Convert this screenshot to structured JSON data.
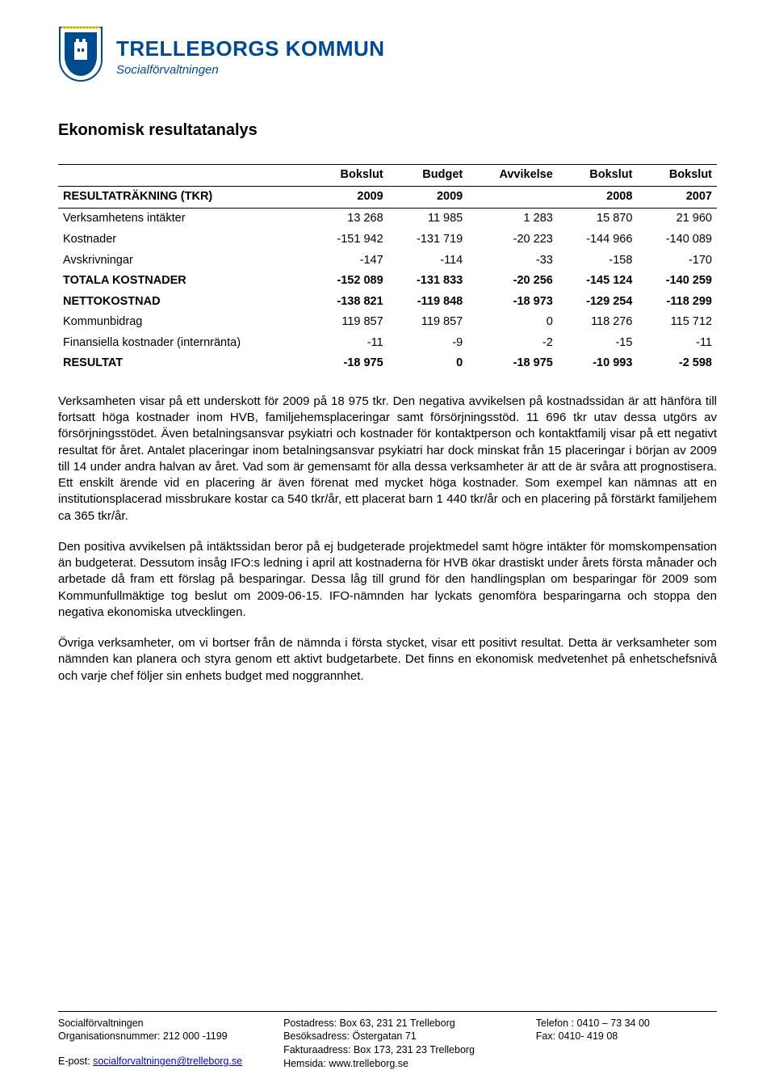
{
  "header": {
    "org_name": "TRELLEBORGS KOMMUN",
    "sub_name": "Socialförvaltningen",
    "crest_colors": {
      "main": "#004a8f",
      "accent": "#ffcc00",
      "white": "#ffffff"
    }
  },
  "section_title": "Ekonomisk resultatanalys",
  "table": {
    "row_label_header": "RESULTATRÄKNING (TKR)",
    "columns": [
      {
        "line1": "Bokslut",
        "line2": "2009"
      },
      {
        "line1": "Budget",
        "line2": "2009"
      },
      {
        "line1": "Avvikelse",
        "line2": ""
      },
      {
        "line1": "Bokslut",
        "line2": "2008"
      },
      {
        "line1": "Bokslut",
        "line2": "2007"
      }
    ],
    "rows": [
      {
        "label": "Verksamhetens intäkter",
        "cells": [
          "13 268",
          "11 985",
          "1 283",
          "15 870",
          "21 960"
        ],
        "bold": false
      },
      {
        "label": "Kostnader",
        "cells": [
          "-151 942",
          "-131 719",
          "-20 223",
          "-144 966",
          "-140 089"
        ],
        "bold": false
      },
      {
        "label": "Avskrivningar",
        "cells": [
          "-147",
          "-114",
          "-33",
          "-158",
          "-170"
        ],
        "bold": false
      },
      {
        "label": "TOTALA KOSTNADER",
        "cells": [
          "-152 089",
          "-131 833",
          "-20 256",
          "-145 124",
          "-140 259"
        ],
        "bold": true
      },
      {
        "label": "NETTOKOSTNAD",
        "cells": [
          "-138 821",
          "-119 848",
          "-18 973",
          "-129 254",
          "-118 299"
        ],
        "bold": true
      },
      {
        "label": "Kommunbidrag",
        "cells": [
          "119 857",
          "119 857",
          "0",
          "118 276",
          "115 712"
        ],
        "bold": false
      },
      {
        "label": "Finansiella kostnader (internränta)",
        "cells": [
          "-11",
          "-9",
          "-2",
          "-15",
          "-11"
        ],
        "bold": false
      },
      {
        "label": "RESULTAT",
        "cells": [
          "-18 975",
          "0",
          "-18 975",
          "-10 993",
          "-2 598"
        ],
        "bold": true
      }
    ]
  },
  "paragraphs": [
    "Verksamheten visar på ett underskott för 2009 på 18 975 tkr. Den negativa avvikelsen på kostnadssidan är att hänföra till fortsatt höga kostnader inom HVB, familjehemsplaceringar samt försörjningsstöd. 11 696 tkr utav dessa utgörs av försörjningsstödet. Även betalningsansvar psykiatri och kostnader för kontaktperson och kontaktfamilj visar på ett negativt resultat för året. Antalet placeringar inom betalningsansvar psykiatri har dock minskat från 15 placeringar i början av 2009 till 14 under andra halvan av året. Vad som är gemensamt för alla dessa verksamheter är att de är svåra att prognostisera. Ett enskilt ärende vid en placering är även förenat med mycket höga kostnader. Som exempel kan nämnas att en institutionsplacerad missbrukare kostar ca 540 tkr/år, ett placerat barn 1 440 tkr/år och en placering på förstärkt familjehem ca 365 tkr/år.",
    "Den positiva avvikelsen på intäktssidan beror på ej budgeterade projektmedel samt högre intäkter för momskompensation än budgeterat. Dessutom insåg IFO:s ledning i april att kostnaderna för HVB ökar drastiskt under årets första månader och arbetade då fram ett förslag på besparingar. Dessa låg till grund för den handlingsplan om besparingar för 2009 som Kommunfullmäktige tog beslut om 2009-06-15. IFO-nämnden har lyckats genomföra besparingarna och stoppa den negativa ekonomiska utvecklingen.",
    "Övriga verksamheter, om vi bortser från de nämnda i första stycket, visar ett positivt resultat. Detta är verksamheter som nämnden kan planera och styra genom ett aktivt budgetarbete. Det finns en ekonomisk medvetenhet på enhetschefsnivå och varje chef följer sin enhets budget med noggrannhet."
  ],
  "footer": {
    "col1": {
      "l1": "Socialförvaltningen",
      "l2": "Organisationsnummer: 212 000 -1199",
      "l3_prefix": "E-post: ",
      "l3_link": "socialforvaltningen@trelleborg.se"
    },
    "col2": {
      "l1": "Postadress: Box 63,  231 21 Trelleborg",
      "l2": "Besöksadress: Östergatan 71",
      "l3": "Fakturaadress: Box 173,  231 23 Trelleborg",
      "l4": "Hemsida: www.trelleborg.se"
    },
    "col3": {
      "l1": "Telefon : 0410 – 73 34 00",
      "l2": "Fax: 0410- 419 08"
    }
  }
}
